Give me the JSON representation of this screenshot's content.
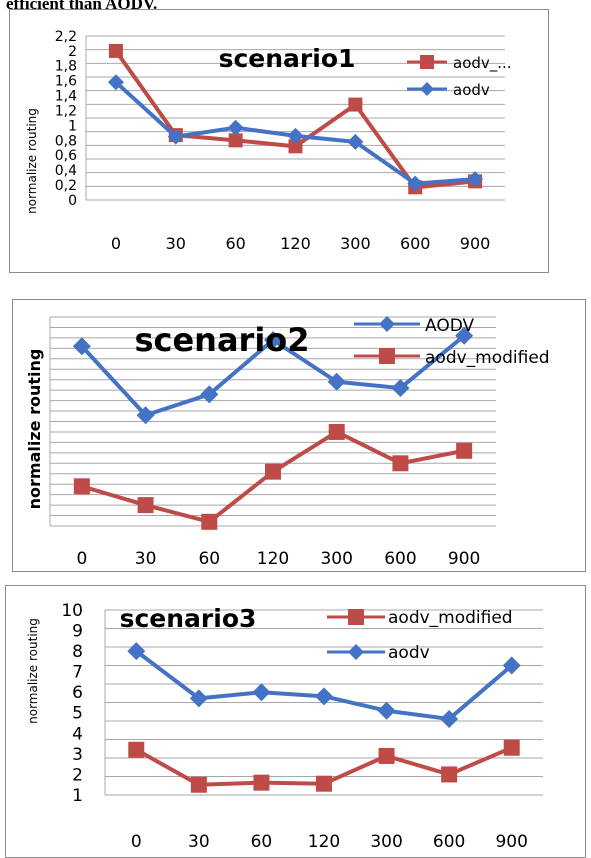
{
  "top_text": "efficient than AODV.",
  "colors": {
    "blue": "#4472c4",
    "red": "#be4b48",
    "grid": "#a8a8a8",
    "border": "#8c8c8c"
  },
  "chart_data": [
    {
      "type": "line",
      "title": "scenario1",
      "ylabel": "normalize routing",
      "categories": [
        "0",
        "30",
        "60",
        "120",
        "300",
        "600",
        "900"
      ],
      "ylim": [
        0,
        2.2
      ],
      "yticks": [
        "0",
        "0,2",
        "0,4",
        "0,6",
        "0,8",
        "1",
        "1,2",
        "1,4",
        "1,6",
        "1,8",
        "2",
        "2,2"
      ],
      "legend_position": "top-right",
      "series": [
        {
          "name": "aodv_...",
          "color": "#be4b48",
          "marker": "square",
          "values": [
            2.0,
            0.87,
            0.8,
            0.72,
            1.28,
            0.17,
            0.25
          ]
        },
        {
          "name": "aodv",
          "color": "#4472c4",
          "marker": "diamond",
          "values": [
            1.58,
            0.85,
            0.97,
            0.86,
            0.78,
            0.22,
            0.28
          ]
        }
      ]
    },
    {
      "type": "line",
      "title": "scenario2",
      "ylabel": "normalize routing",
      "categories": [
        "0",
        "30",
        "60",
        "120",
        "300",
        "600",
        "900"
      ],
      "ylim": [
        0,
        1
      ],
      "yticks": [],
      "legend_position": "top-right",
      "series": [
        {
          "name": "AODV",
          "color": "#4472c4",
          "marker": "diamond",
          "values": [
            0.86,
            0.53,
            0.63,
            0.89,
            0.69,
            0.66,
            0.91
          ]
        },
        {
          "name": "aodv_modified",
          "color": "#be4b48",
          "marker": "square",
          "values": [
            0.19,
            0.1,
            0.02,
            0.26,
            0.45,
            0.3,
            0.36
          ]
        }
      ]
    },
    {
      "type": "line",
      "title": "scenario3",
      "ylabel": "normalize routing",
      "categories": [
        "0",
        "30",
        "60",
        "120",
        "300",
        "600",
        "900"
      ],
      "ylim": [
        1,
        10
      ],
      "yticks": [
        "1",
        "2",
        "3",
        "4",
        "5",
        "6",
        "7",
        "8",
        "9",
        "10"
      ],
      "legend_position": "top-right",
      "series": [
        {
          "name": "aodv_modified",
          "color": "#be4b48",
          "marker": "square",
          "values": [
            3.2,
            1.5,
            1.6,
            1.55,
            2.9,
            2.0,
            3.3
          ]
        },
        {
          "name": "aodv",
          "color": "#4472c4",
          "marker": "diamond",
          "values": [
            8.0,
            5.7,
            6.0,
            5.8,
            5.1,
            4.7,
            7.3
          ]
        }
      ]
    }
  ]
}
